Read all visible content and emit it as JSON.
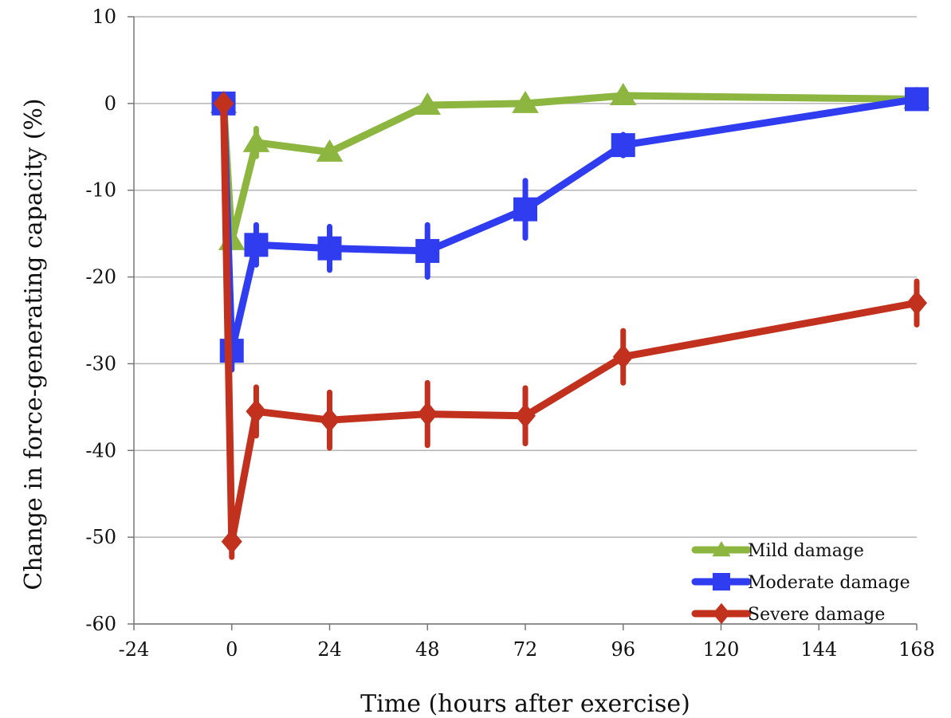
{
  "chart_data": {
    "type": "line",
    "title": "",
    "xlabel": "Time (hours after exercise)",
    "ylabel": "Change in force-generating capacity (%)",
    "xlim": [
      -24,
      168
    ],
    "ylim": [
      -60,
      10
    ],
    "xticks": [
      -24,
      0,
      24,
      48,
      72,
      96,
      120,
      144,
      168
    ],
    "yticks": [
      10,
      0,
      -10,
      -20,
      -30,
      -40,
      -50,
      -60
    ],
    "grid": "horizontal",
    "legend_position": "bottom-right",
    "series": [
      {
        "name": "Mild damage",
        "color": "#8db640",
        "marker": "triangle",
        "x": [
          -2,
          0,
          6,
          24,
          48,
          72,
          96,
          168
        ],
        "y": [
          0,
          -15.8,
          -4.5,
          -5.6,
          -0.2,
          0,
          0.9,
          0.5
        ],
        "err": [
          0,
          0,
          1.6,
          0,
          0,
          0,
          0,
          0
        ]
      },
      {
        "name": "Moderate damage",
        "color": "#2f3cf0",
        "marker": "square",
        "x": [
          -2,
          0,
          6,
          24,
          48,
          72,
          96,
          168
        ],
        "y": [
          0,
          -28.5,
          -16.3,
          -16.7,
          -17,
          -12.2,
          -4.8,
          0.5
        ],
        "err": [
          0,
          2.2,
          2.3,
          2.5,
          3.0,
          3.3,
          1.2,
          0
        ]
      },
      {
        "name": "Severe damage",
        "color": "#c1311e",
        "marker": "diamond",
        "x": [
          -2,
          0,
          6,
          24,
          48,
          72,
          96,
          168
        ],
        "y": [
          0,
          -50.5,
          -35.5,
          -36.5,
          -35.8,
          -36,
          -29.2,
          -23
        ],
        "err": [
          0,
          1.8,
          2.8,
          3.2,
          3.6,
          3.2,
          3.0,
          2.5
        ]
      }
    ]
  }
}
